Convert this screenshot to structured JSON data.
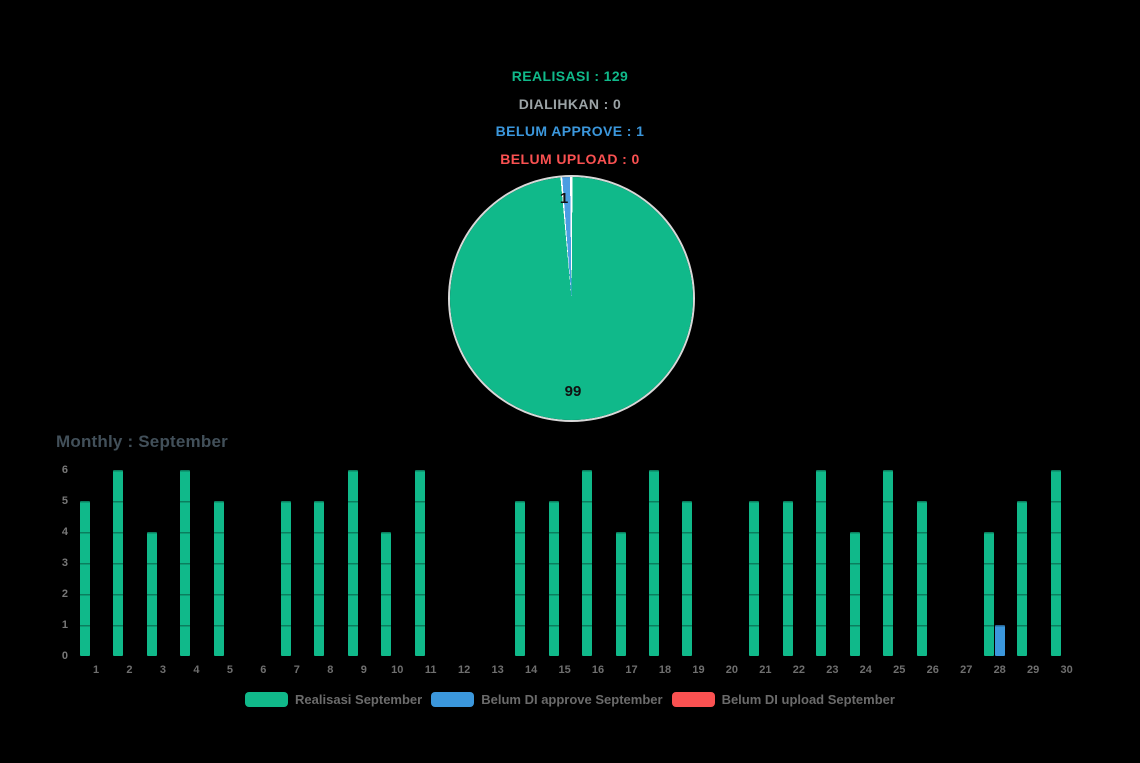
{
  "page": {
    "background": "#000000"
  },
  "summary": {
    "lines": [
      {
        "label": "REALISASI",
        "value": "129",
        "text": "REALISASI : 129",
        "color": "#10b98a"
      },
      {
        "label": "DIALIHKAN",
        "value": "0",
        "text": "DIALIHKAN : 0",
        "color": "#9ba3a6"
      },
      {
        "label": "BELUM APPROVE",
        "value": "1",
        "text": "BELUM APPROVE : 1",
        "color": "#3b97dc"
      },
      {
        "label": "BELUM UPLOAD",
        "value": "0",
        "text": "BELUM UPLOAD : 0",
        "color": "#fa5151"
      }
    ]
  },
  "chart_data": [
    {
      "type": "pie",
      "title": "",
      "slices": [
        {
          "label": "Realisasi September",
          "value": 99,
          "data_label": "99",
          "color": "#10b98a"
        },
        {
          "label": "Belum DI approve September",
          "value": 1,
          "data_label": "1",
          "color": "#4a9de2"
        }
      ],
      "slice_border_color": "#ffffff",
      "start_angle_deg": 0,
      "direction": "clockwise"
    },
    {
      "type": "bar",
      "title": "Monthly : September",
      "categories": [
        "1",
        "2",
        "3",
        "4",
        "5",
        "6",
        "7",
        "8",
        "9",
        "10",
        "11",
        "12",
        "13",
        "14",
        "15",
        "16",
        "17",
        "18",
        "19",
        "20",
        "21",
        "22",
        "23",
        "24",
        "25",
        "26",
        "27",
        "28",
        "29",
        "30"
      ],
      "series": [
        {
          "name": "Realisasi September",
          "color": "#10b98a",
          "values": [
            5,
            6,
            4,
            6,
            5,
            0,
            5,
            5,
            6,
            4,
            6,
            0,
            0,
            5,
            5,
            6,
            4,
            6,
            5,
            0,
            5,
            5,
            6,
            4,
            6,
            5,
            0,
            4,
            5,
            6
          ]
        },
        {
          "name": "Belum DI approve September",
          "color": "#3b97dc",
          "values": [
            0,
            0,
            0,
            0,
            0,
            0,
            0,
            0,
            0,
            0,
            0,
            0,
            0,
            0,
            0,
            0,
            0,
            0,
            0,
            0,
            0,
            0,
            0,
            0,
            0,
            0,
            0,
            1,
            0,
            0
          ]
        },
        {
          "name": "Belum DI upload September",
          "color": "#fa5151",
          "values": [
            0,
            0,
            0,
            0,
            0,
            0,
            0,
            0,
            0,
            0,
            0,
            0,
            0,
            0,
            0,
            0,
            0,
            0,
            0,
            0,
            0,
            0,
            0,
            0,
            0,
            0,
            0,
            0,
            0,
            0
          ]
        }
      ],
      "xlabel": "",
      "ylabel": "",
      "ylim": [
        0,
        6
      ],
      "yticks": [
        0,
        1,
        2,
        3,
        4,
        5,
        6
      ],
      "grid": "off",
      "legend_position": "bottom"
    }
  ]
}
